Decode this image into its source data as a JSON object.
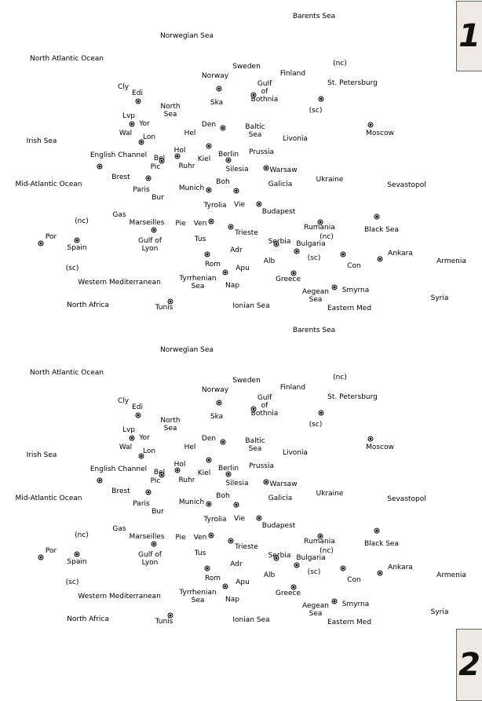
{
  "panels": [
    {
      "number": "1"
    },
    {
      "number": "2"
    }
  ],
  "labels": [
    "Barents Sea",
    "Norwegian Sea",
    "North Atlantic Ocean",
    "Sweden",
    "Finland",
    "(nc)",
    "Norway",
    "Gulf\nof\nBothnia",
    "St. Petersburg",
    "Cly",
    "Edi",
    "North\nSea",
    "Ska",
    "(sc)",
    "Lvp",
    "Yor",
    "Den",
    "Baltic\nSea",
    "Wal",
    "Lon",
    "Hel",
    "Livonia",
    "Moscow",
    "Irish Sea",
    "Hol",
    "Prussia",
    "Bel",
    "Berlin",
    "English Channel",
    "Kiel",
    "Pic",
    "Ruhr",
    "Silesia",
    "Warsaw",
    "Brest",
    "Mid-Atlantic Ocean",
    "Boh",
    "Galicia",
    "Ukraine",
    "Sevastopol",
    "Munich",
    "Paris",
    "Vie",
    "Bur",
    "Tyrolia",
    "Budapest",
    "Gas",
    "(nc)",
    "Marseilles",
    "Pie",
    "Ven",
    "Rumania",
    "Black Sea",
    "Por",
    "Trieste",
    "(nc)",
    "Spain",
    "Gulf of\nLyon",
    "Tus",
    "Serbia",
    "Bulgaria",
    "Adr",
    "Ankara",
    "(sc)",
    "Armenia",
    "Rom",
    "Alb",
    "Con",
    "(sc)",
    "Apu",
    "Tyrrhenian\nSea",
    "Greece",
    "Smyrna",
    "Western Mediterranean",
    "Nap",
    "Aegean\nSea",
    "Syria",
    "North Africa",
    "Tunis",
    "Ionian Sea",
    "Eastern Med"
  ]
}
